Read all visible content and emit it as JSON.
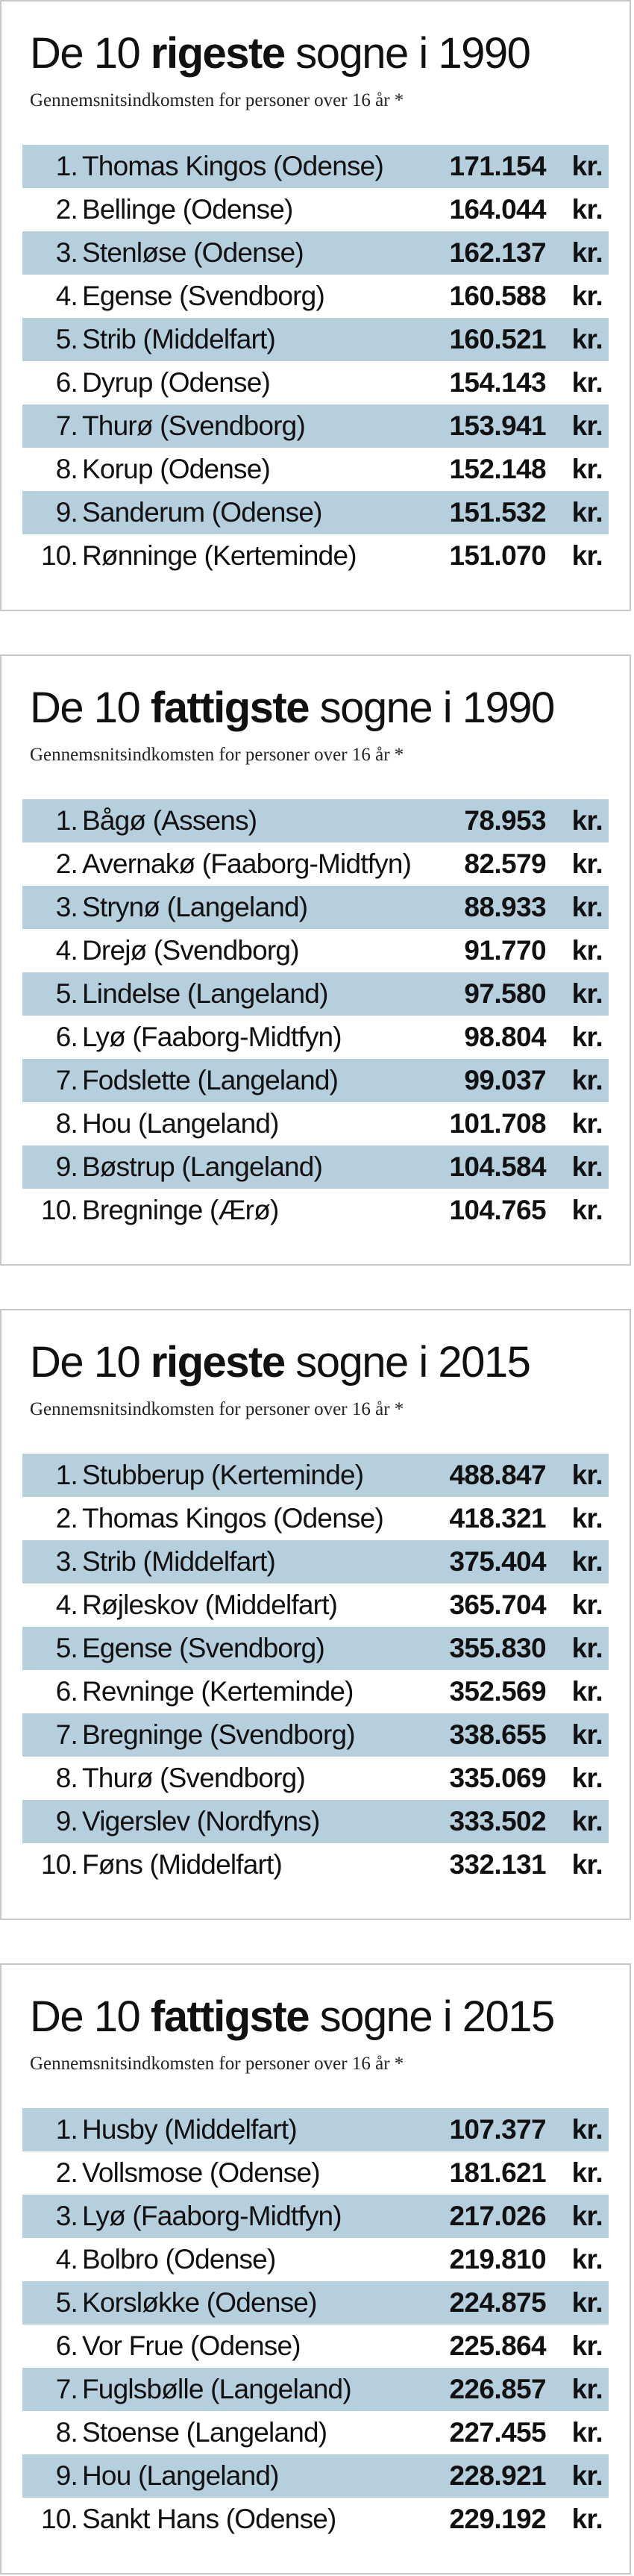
{
  "unit": "kr.",
  "panels": [
    {
      "title_pre": "De 10 ",
      "title_em": "rigeste",
      "title_post": " sogne i 1990",
      "subtitle": "Gennemsnitsindkomsten for personer over 16 år *",
      "rows": [
        {
          "rank": "1.",
          "name": "Thomas Kingos (Odense)",
          "amount": "171.154"
        },
        {
          "rank": "2.",
          "name": "Bellinge (Odense)",
          "amount": "164.044"
        },
        {
          "rank": "3.",
          "name": "Stenløse (Odense)",
          "amount": "162.137"
        },
        {
          "rank": "4.",
          "name": "Egense (Svendborg)",
          "amount": "160.588"
        },
        {
          "rank": "5.",
          "name": "Strib (Middelfart)",
          "amount": "160.521"
        },
        {
          "rank": "6.",
          "name": "Dyrup (Odense)",
          "amount": "154.143"
        },
        {
          "rank": "7.",
          "name": "Thurø (Svendborg)",
          "amount": "153.941"
        },
        {
          "rank": "8.",
          "name": "Korup (Odense)",
          "amount": "152.148"
        },
        {
          "rank": "9.",
          "name": "Sanderum (Odense)",
          "amount": "151.532"
        },
        {
          "rank": "10.",
          "name": "Rønninge (Kerteminde)",
          "amount": "151.070"
        }
      ]
    },
    {
      "title_pre": "De 10 ",
      "title_em": "fattigste",
      "title_post": " sogne i 1990",
      "subtitle": "Gennemsnitsindkomsten for personer over 16 år *",
      "rows": [
        {
          "rank": "1.",
          "name": "Bågø (Assens)",
          "amount": "78.953"
        },
        {
          "rank": "2.",
          "name": "Avernakø (Faaborg-Midtfyn)",
          "amount": "82.579"
        },
        {
          "rank": "3.",
          "name": "Strynø (Langeland)",
          "amount": "88.933"
        },
        {
          "rank": "4.",
          "name": "Drejø (Svendborg)",
          "amount": "91.770"
        },
        {
          "rank": "5.",
          "name": "Lindelse (Langeland)",
          "amount": "97.580"
        },
        {
          "rank": "6.",
          "name": "Lyø (Faaborg-Midtfyn)",
          "amount": "98.804"
        },
        {
          "rank": "7.",
          "name": "Fodslette (Langeland)",
          "amount": "99.037"
        },
        {
          "rank": "8.",
          "name": "Hou (Langeland)",
          "amount": "101.708"
        },
        {
          "rank": "9.",
          "name": "Bøstrup (Langeland)",
          "amount": "104.584"
        },
        {
          "rank": "10.",
          "name": "Bregninge (Ærø)",
          "amount": "104.765"
        }
      ]
    },
    {
      "title_pre": "De 10 ",
      "title_em": "rigeste",
      "title_post": " sogne i 2015",
      "subtitle": "Gennemsnitsindkomsten for personer over 16 år *",
      "rows": [
        {
          "rank": "1.",
          "name": "Stubberup (Kerteminde)",
          "amount": "488.847"
        },
        {
          "rank": "2.",
          "name": "Thomas Kingos (Odense)",
          "amount": "418.321"
        },
        {
          "rank": "3.",
          "name": "Strib (Middelfart)",
          "amount": "375.404"
        },
        {
          "rank": "4.",
          "name": "Røjleskov (Middelfart)",
          "amount": "365.704"
        },
        {
          "rank": "5.",
          "name": "Egense (Svendborg)",
          "amount": "355.830"
        },
        {
          "rank": "6.",
          "name": "Revninge (Kerteminde)",
          "amount": "352.569"
        },
        {
          "rank": "7.",
          "name": "Bregninge (Svendborg)",
          "amount": "338.655"
        },
        {
          "rank": "8.",
          "name": "Thurø (Svendborg)",
          "amount": "335.069"
        },
        {
          "rank": "9.",
          "name": "Vigerslev (Nordfyns)",
          "amount": "333.502"
        },
        {
          "rank": "10.",
          "name": "Føns (Middelfart)",
          "amount": "332.131"
        }
      ]
    },
    {
      "title_pre": "De 10 ",
      "title_em": "fattigste",
      "title_post": " sogne i 2015",
      "subtitle": "Gennemsnitsindkomsten for personer over 16 år *",
      "rows": [
        {
          "rank": "1.",
          "name": "Husby (Middelfart)",
          "amount": "107.377"
        },
        {
          "rank": "2.",
          "name": "Vollsmose (Odense)",
          "amount": "181.621"
        },
        {
          "rank": "3.",
          "name": "Lyø (Faaborg-Midtfyn)",
          "amount": "217.026"
        },
        {
          "rank": "4.",
          "name": "Bolbro (Odense)",
          "amount": "219.810"
        },
        {
          "rank": "5.",
          "name": "Korsløkke (Odense)",
          "amount": "224.875"
        },
        {
          "rank": "6.",
          "name": "Vor Frue (Odense)",
          "amount": "225.864"
        },
        {
          "rank": "7.",
          "name": "Fuglsbølle (Langeland)",
          "amount": "226.857"
        },
        {
          "rank": "8.",
          "name": "Stoense (Langeland)",
          "amount": "227.455"
        },
        {
          "rank": "9.",
          "name": "Hou (Langeland)",
          "amount": "228.921"
        },
        {
          "rank": "10.",
          "name": "Sankt Hans (Odense)",
          "amount": "229.192"
        }
      ]
    }
  ]
}
